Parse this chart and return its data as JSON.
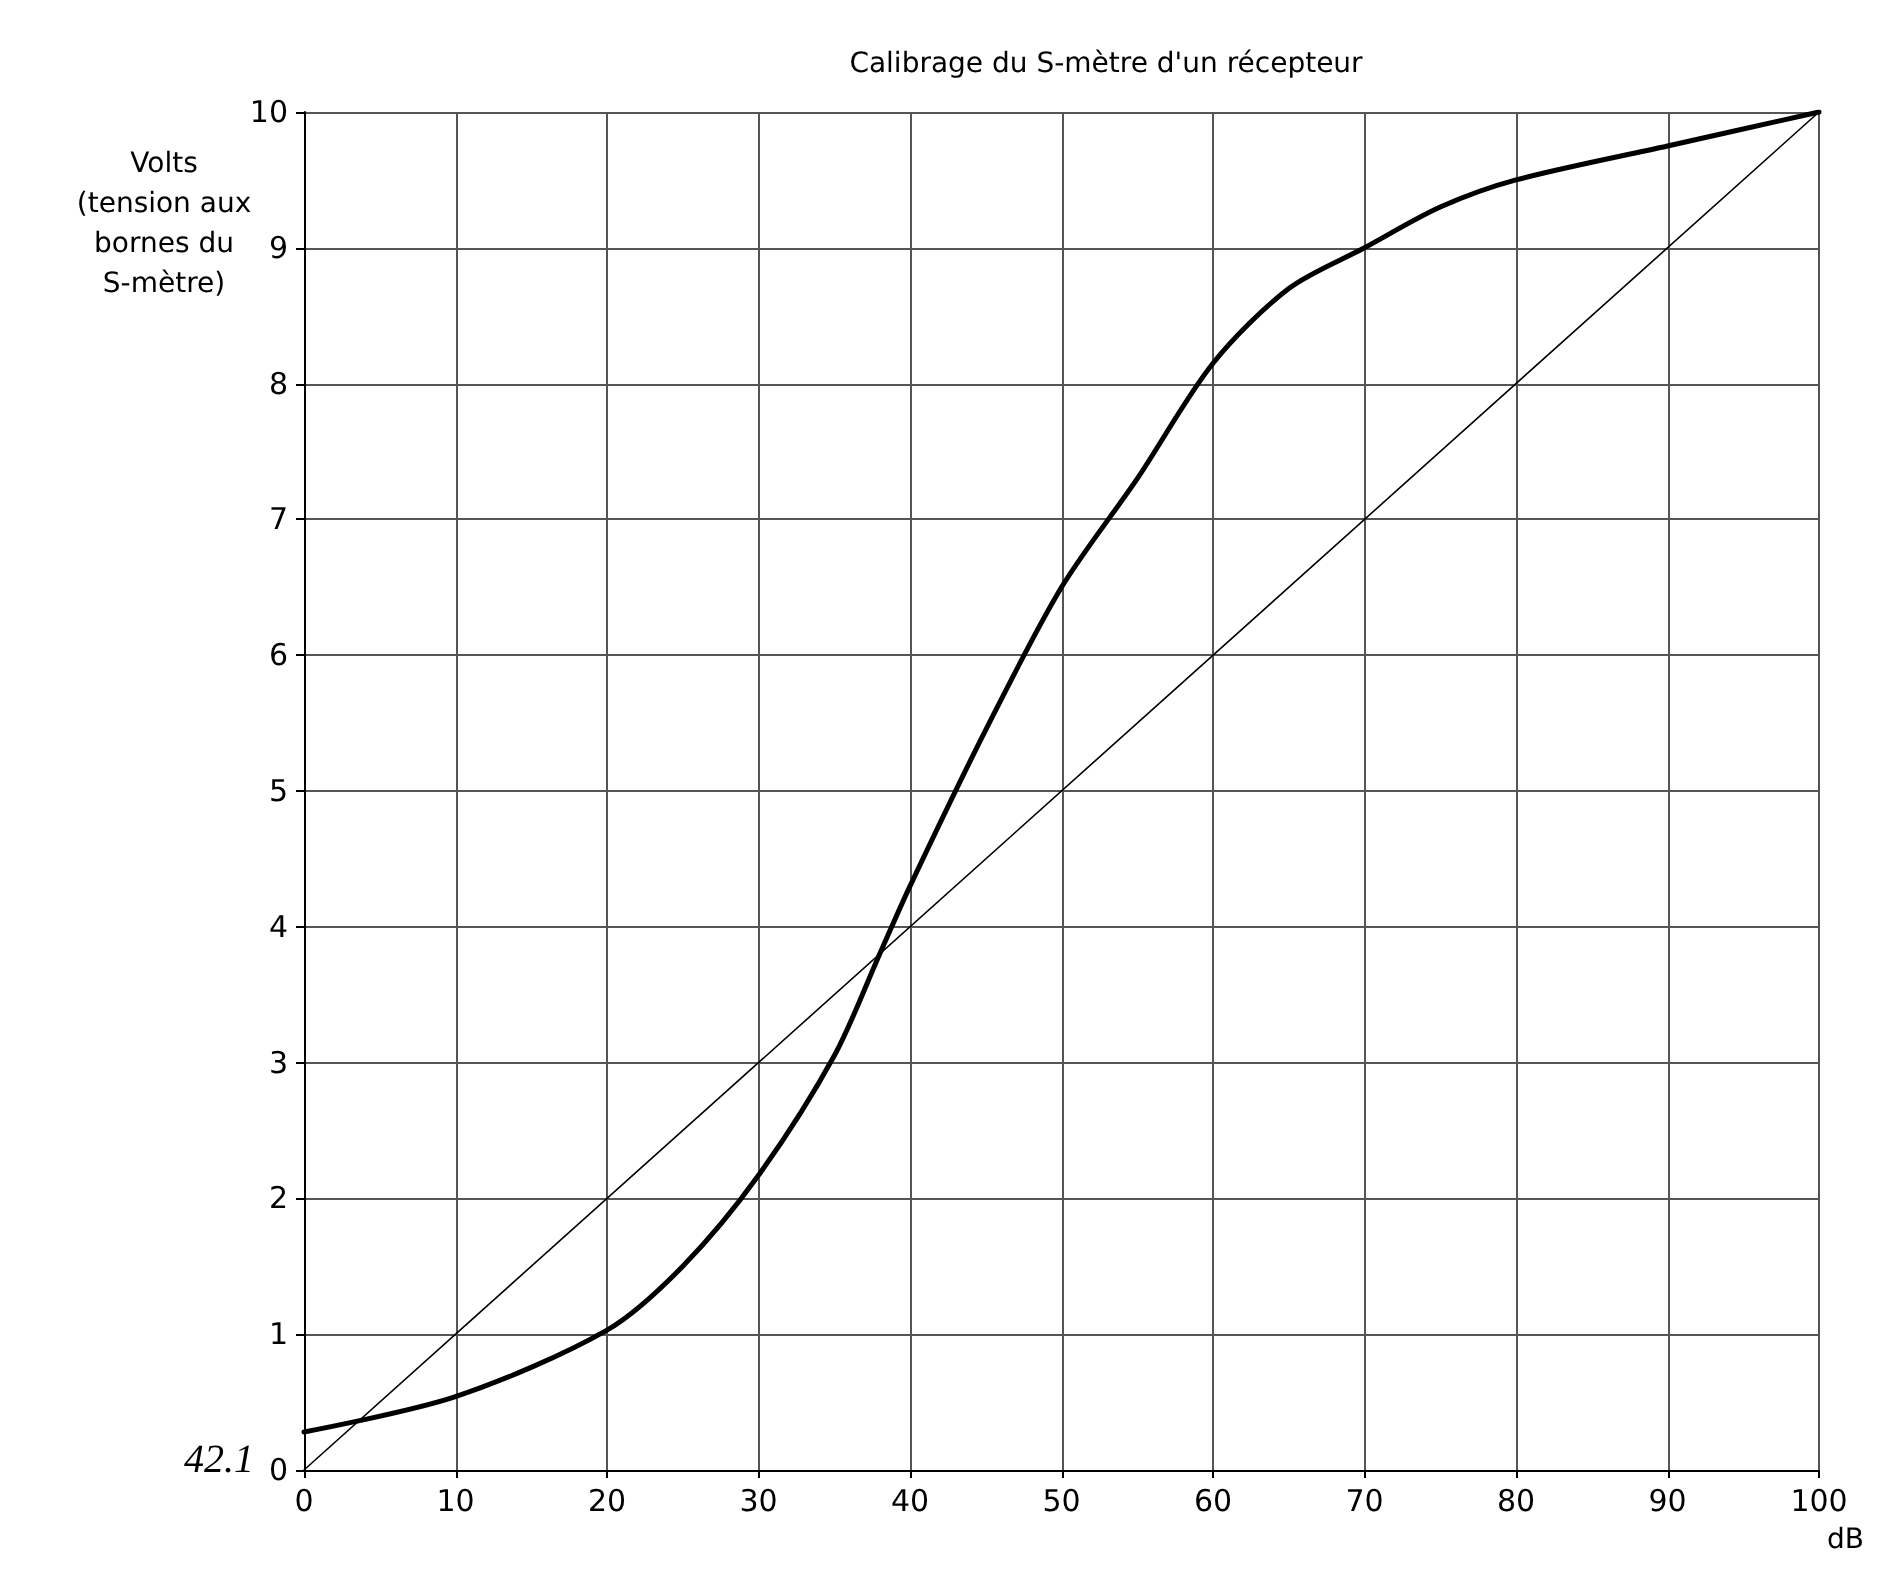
{
  "chart_data": {
    "type": "line",
    "title": "Calibrage du S-mètre d'un récepteur",
    "xlabel": "dB",
    "ylabel": "Volts\n(tension aux\nbornes du\nS-mètre)",
    "annotations": [
      "42.1"
    ],
    "series": [
      {
        "color": "#000000",
        "x": [
          0,
          10,
          20,
          25,
          30,
          35,
          38,
          40,
          45,
          50,
          55,
          60,
          65,
          70,
          75,
          80,
          90,
          100
        ],
        "values": [
          0.28,
          0.54,
          1.03,
          1.5,
          2.17,
          3.05,
          3.8,
          4.3,
          5.45,
          6.5,
          7.3,
          8.15,
          8.7,
          9.0,
          9.3,
          9.5,
          9.75,
          10
        ]
      },
      {
        "color": "#000000",
        "x": [
          0,
          100
        ],
        "values": [
          0,
          10
        ]
      }
    ],
    "xlim": [
      0,
      100
    ],
    "xticks": [
      0,
      10,
      20,
      30,
      40,
      50,
      60,
      70,
      80,
      90,
      100
    ],
    "ylim": [
      0,
      10
    ],
    "yticks": [
      0,
      1,
      2,
      3,
      4,
      5,
      6,
      7,
      8,
      9,
      10
    ],
    "grid": true,
    "marker": "none",
    "line_style": "solid"
  }
}
